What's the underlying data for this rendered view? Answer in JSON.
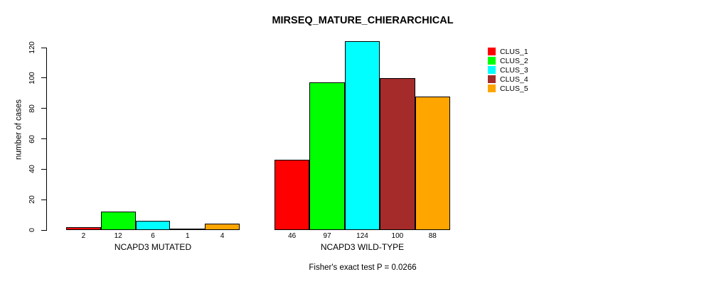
{
  "chart_data": {
    "type": "bar",
    "title": "MIRSEQ_MATURE_CHIERARCHICAL",
    "ylabel": "number of cases",
    "ylim": [
      0,
      120
    ],
    "yticks": [
      0,
      20,
      40,
      60,
      80,
      100,
      120
    ],
    "grid": false,
    "legend_position": "right",
    "bar_value_labels": true,
    "categories": [
      "NCAPD3 MUTATED",
      "NCAPD3 WILD-TYPE"
    ],
    "series": [
      {
        "name": "CLUS_1",
        "color": "#FF0000",
        "values": [
          2,
          46
        ]
      },
      {
        "name": "CLUS_2",
        "color": "#00FF00",
        "values": [
          12,
          97
        ]
      },
      {
        "name": "CLUS_3",
        "color": "#00FFFF",
        "values": [
          6,
          124
        ]
      },
      {
        "name": "CLUS_4",
        "color": "#A52A2A",
        "values": [
          1,
          100
        ]
      },
      {
        "name": "CLUS_5",
        "color": "#FFA500",
        "values": [
          4,
          88
        ]
      }
    ],
    "annotation": "Fisher's exact test P = 0.0266"
  }
}
